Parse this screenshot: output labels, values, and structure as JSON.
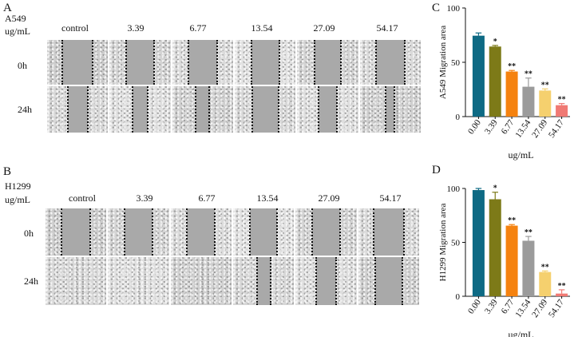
{
  "figure": {
    "panel_A": {
      "letter": "A",
      "line1": "A549",
      "line2": "ug/mL"
    },
    "panel_B": {
      "letter": "B",
      "line1": "H1299",
      "line2": "ug/mL"
    },
    "panel_C": {
      "letter": "C"
    },
    "panel_D": {
      "letter": "D"
    },
    "columns": [
      "control",
      "3.39",
      "6.77",
      "13.54",
      "27.09",
      "54.17"
    ],
    "times": [
      "0h",
      "24h"
    ],
    "gap_fraction_A": {
      "0h": [
        0.5,
        0.46,
        0.47,
        0.46,
        0.44,
        0.48
      ],
      "24h": [
        0.33,
        0.24,
        0.22,
        0.43,
        0.29,
        0.14
      ]
    },
    "gap_fraction_B": {
      "0h": [
        0.48,
        0.46,
        0.46,
        0.44,
        0.45,
        0.5
      ],
      "24h": [
        0.0,
        0.0,
        0.0,
        0.22,
        0.32,
        0.45
      ]
    }
  },
  "chart_data": [
    {
      "type": "bar",
      "panel": "C",
      "categories": [
        "0.00",
        "3.39",
        "6.77",
        "13.54",
        "27.09",
        "54.17"
      ],
      "values": [
        74.5,
        64.5,
        41.5,
        27.5,
        24.0,
        10.5
      ],
      "errors": [
        2.5,
        1.0,
        1.0,
        8.0,
        1.5,
        1.5
      ],
      "annotations": [
        "",
        "*",
        "**",
        "**",
        "**",
        "**"
      ],
      "colors": [
        "#0e6a84",
        "#7d7a18",
        "#f5820f",
        "#9b9b9b",
        "#f5d06e",
        "#f07a74"
      ],
      "xlabel": "ug/mL",
      "ylabel": "A549 Migration area",
      "ylim": [
        0,
        100
      ],
      "yticks": [
        0,
        50,
        100
      ]
    },
    {
      "type": "bar",
      "panel": "D",
      "categories": [
        "0.00",
        "3.39",
        "6.77",
        "13.54",
        "27.09",
        "54.17"
      ],
      "values": [
        98.5,
        90.0,
        65.5,
        51.5,
        22.5,
        2.5
      ],
      "errors": [
        1.5,
        6.5,
        1.0,
        4.0,
        1.0,
        3.5
      ],
      "annotations": [
        "",
        "*",
        "**",
        "**",
        "**",
        "**"
      ],
      "colors": [
        "#0e6a84",
        "#7d7a18",
        "#f5820f",
        "#9b9b9b",
        "#f5d06e",
        "#f07a74"
      ],
      "xlabel": "ug/mL",
      "ylabel": "H1299 Migration area",
      "ylim": [
        0,
        100
      ],
      "yticks": [
        0,
        50,
        100
      ]
    }
  ]
}
